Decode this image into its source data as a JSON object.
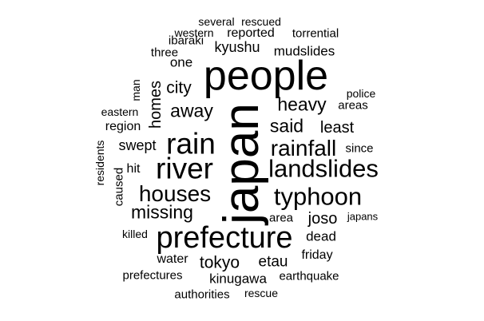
{
  "text_color": "#000000",
  "background_color": "#ffffff",
  "words": {
    "people": "people",
    "japan": "japan",
    "prefecture": "prefecture",
    "river": "river",
    "rain": "rain",
    "landslides": "landslides",
    "typhoon": "typhoon",
    "houses": "houses",
    "rainfall": "rainfall",
    "missing": "missing",
    "heavy": "heavy",
    "said": "said",
    "away": "away",
    "homes": "homes",
    "city": "city",
    "least": "least",
    "kyushu": "kyushu",
    "mudslides": "mudslides",
    "swept": "swept",
    "tokyo": "tokyo",
    "joso": "joso",
    "etau": "etau",
    "dead": "dead",
    "kinugawa": "kinugawa",
    "reported": "reported",
    "several": "several",
    "rescued": "rescued",
    "western": "western",
    "ibaraki": "ibaraki",
    "three": "three",
    "one": "one",
    "torrential": "torrential",
    "police": "police",
    "areas": "areas",
    "eastern": "eastern",
    "man": "man",
    "region": "region",
    "since": "since",
    "residents": "residents",
    "caused": "caused",
    "hit": "hit",
    "area": "area",
    "japans": "japans",
    "killed": "killed",
    "water": "water",
    "friday": "friday",
    "prefectures": "prefectures",
    "earthquake": "earthquake",
    "authorities": "authorities",
    "rescue": "rescue"
  }
}
